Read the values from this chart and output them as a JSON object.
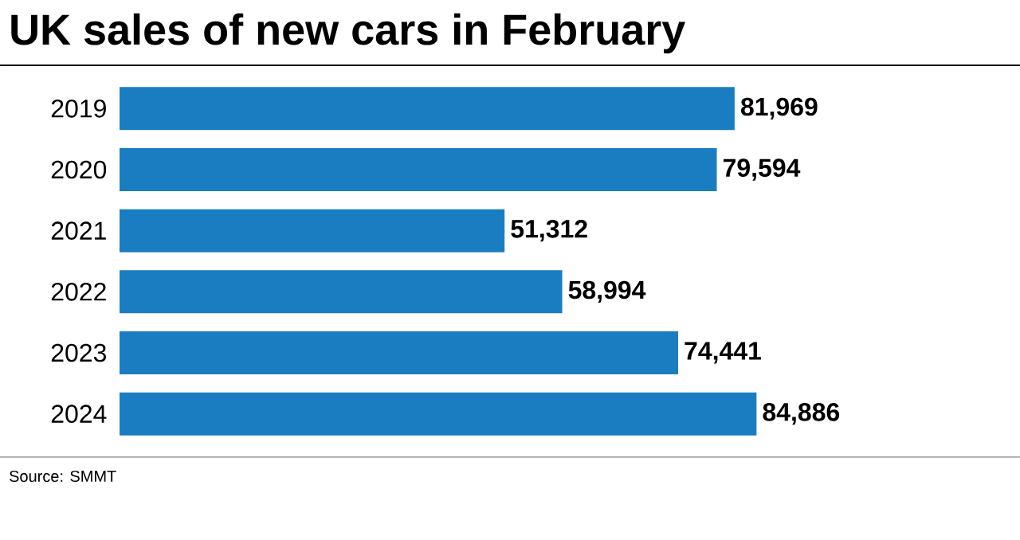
{
  "chart_data": {
    "type": "bar",
    "orientation": "horizontal",
    "title": "UK sales of new cars in February",
    "categories": [
      "2019",
      "2020",
      "2021",
      "2022",
      "2023",
      "2024"
    ],
    "values": [
      81969,
      79594,
      51312,
      58994,
      74441,
      84886
    ],
    "value_labels": [
      "81,969",
      "79,594",
      "51,312",
      "58,994",
      "74,441",
      "84,886"
    ],
    "color": "#1a7dc1",
    "xlim": [
      0,
      120000
    ],
    "tick_labels": "y",
    "annotations": [
      "Source: SMMT"
    ]
  }
}
